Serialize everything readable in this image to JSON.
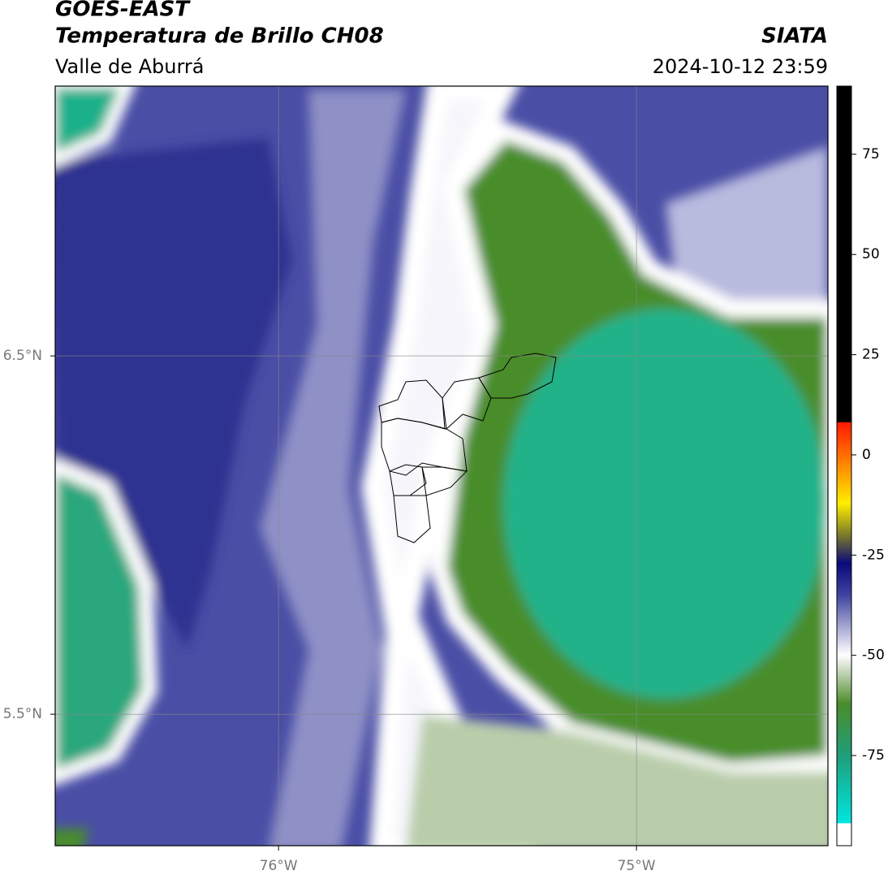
{
  "header": {
    "title": "GOES-EAST",
    "subtitle": "Temperatura de Brillo CH08",
    "region": "Valle de Aburrá",
    "source": "SIATA",
    "timestamp": "2024-10-12 23:59"
  },
  "map": {
    "type": "map",
    "xlim": [
      -76.624,
      -74.465
    ],
    "ylim": [
      5.133,
      7.253
    ],
    "xticks": [
      {
        "value": -76,
        "label": "76°W"
      },
      {
        "value": -75,
        "label": "75°W"
      }
    ],
    "yticks": [
      {
        "value": 6.5,
        "label": "6.5°N"
      },
      {
        "value": 5.5,
        "label": "5.5°N"
      }
    ],
    "grid": true,
    "colorbar": {
      "lim": [
        -97.5,
        92
      ],
      "ticks": [
        75,
        50,
        25,
        0,
        -25,
        -50,
        -75
      ]
    }
  }
}
